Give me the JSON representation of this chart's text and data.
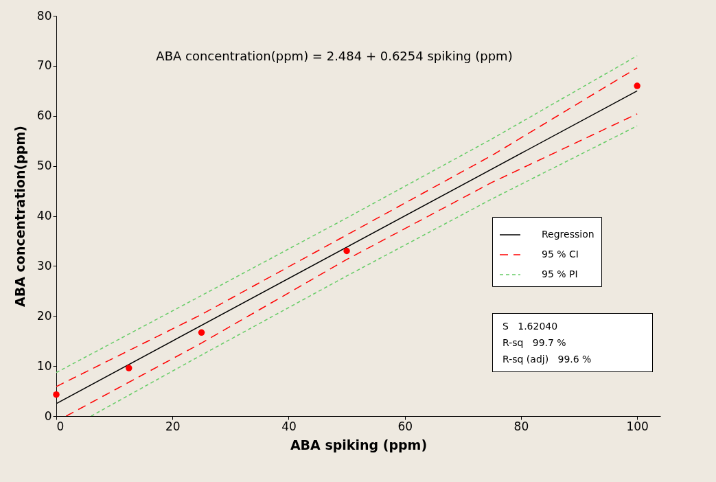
{
  "chart_data": {
    "type": "line",
    "xlabel": "ABA spiking (ppm)",
    "ylabel": "ABA concentration(ppm)",
    "xlim": [
      0,
      104
    ],
    "ylim": [
      0,
      80
    ],
    "xticks": [
      0,
      20,
      40,
      60,
      80,
      100
    ],
    "yticks": [
      0,
      10,
      20,
      30,
      40,
      50,
      60,
      70,
      80
    ],
    "grid": false,
    "legend": "right",
    "annotations": [
      "ABA concentration(ppm) =  2.484 + 0.6254 spiking (ppm)",
      "S   1.62040",
      "R-sq   99.7 %",
      "R-sq (adj)   99.6 %"
    ],
    "series": [
      {
        "name": "Regression",
        "color": "#000000",
        "line_style": "solid",
        "x": [
          0,
          100
        ],
        "values": [
          2.5,
          65.0
        ]
      },
      {
        "name": "95 % CI",
        "color": "#ff0000",
        "line_style": "dashed",
        "x": [
          0,
          25,
          50,
          75,
          100
        ],
        "values": [
          5.9,
          20.3,
          36.2,
          52.1,
          69.6
        ]
      },
      {
        "color": "#ff0000",
        "line_style": "dashed",
        "x": [
          1.7,
          25,
          50,
          75,
          100
        ],
        "values": [
          0,
          14.6,
          31.3,
          46.7,
          60.4
        ]
      },
      {
        "name": "95 % PI",
        "color": "#66cc66",
        "line_style": "dotted",
        "x": [
          0,
          25,
          50,
          75,
          100
        ],
        "values": [
          8.7,
          24.1,
          39.6,
          55.4,
          72
        ]
      },
      {
        "color": "#66cc66",
        "line_style": "dotted",
        "x": [
          6,
          25,
          50,
          75,
          100
        ],
        "values": [
          0,
          12.2,
          28,
          43.4,
          58
        ]
      },
      {
        "type": "scatter",
        "color": "#ff0000",
        "marker": "circle",
        "x": [
          0,
          12.5,
          25,
          50,
          100
        ],
        "values": [
          4.3,
          9.6,
          16.7,
          33,
          66
        ]
      }
    ]
  }
}
